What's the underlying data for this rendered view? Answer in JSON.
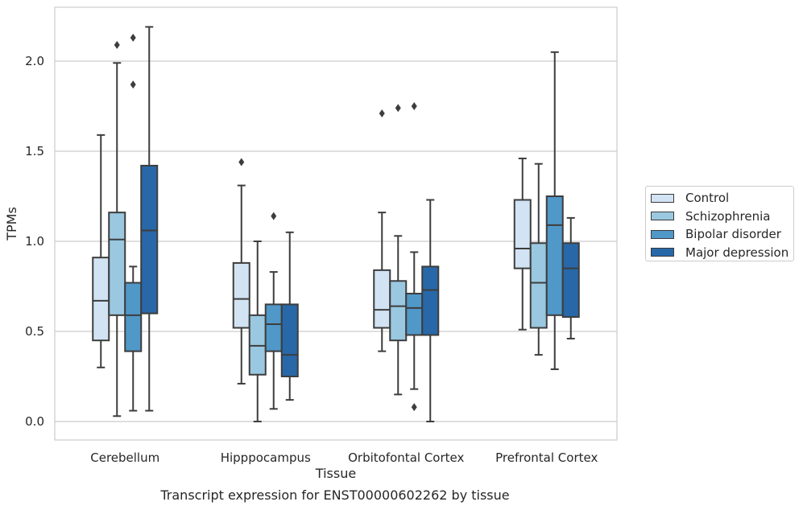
{
  "chart_data": {
    "type": "box",
    "xlabel": "Tissue",
    "ylabel": "TPMs",
    "caption": "Transcript expression for ENST00000602262 by tissue",
    "categories": [
      "Cerebellum",
      "Hipppocampus",
      "Orbitofontal Cortex",
      "Prefrontal Cortex"
    ],
    "ylim": [
      -0.1,
      2.3
    ],
    "yticks": [
      "0.0",
      "0.5",
      "1.0",
      "1.5",
      "2.0"
    ],
    "grid": "horizontal",
    "legend_position": "right",
    "series": [
      {
        "name": "Control",
        "color": "#d2e3f3",
        "boxes": [
          {
            "whisker_low": 0.3,
            "q1": 0.45,
            "median": 0.67,
            "q3": 0.91,
            "whisker_high": 1.59,
            "outliers": []
          },
          {
            "whisker_low": 0.21,
            "q1": 0.52,
            "median": 0.68,
            "q3": 0.88,
            "whisker_high": 1.31,
            "outliers": [
              1.44
            ]
          },
          {
            "whisker_low": 0.39,
            "q1": 0.52,
            "median": 0.62,
            "q3": 0.84,
            "whisker_high": 1.16,
            "outliers": [
              1.71
            ]
          },
          {
            "whisker_low": 0.51,
            "q1": 0.85,
            "median": 0.96,
            "q3": 1.23,
            "whisker_high": 1.46,
            "outliers": []
          }
        ]
      },
      {
        "name": "Schizophrenia",
        "color": "#9ac8e0",
        "boxes": [
          {
            "whisker_low": 0.03,
            "q1": 0.59,
            "median": 1.01,
            "q3": 1.16,
            "whisker_high": 1.99,
            "outliers": [
              2.09
            ]
          },
          {
            "whisker_low": 0.0,
            "q1": 0.26,
            "median": 0.42,
            "q3": 0.59,
            "whisker_high": 1.0,
            "outliers": []
          },
          {
            "whisker_low": 0.15,
            "q1": 0.45,
            "median": 0.64,
            "q3": 0.78,
            "whisker_high": 1.03,
            "outliers": [
              1.74
            ]
          },
          {
            "whisker_low": 0.37,
            "q1": 0.52,
            "median": 0.77,
            "q3": 0.99,
            "whisker_high": 1.43,
            "outliers": []
          }
        ]
      },
      {
        "name": "Bipolar disorder",
        "color": "#5098c8",
        "boxes": [
          {
            "whisker_low": 0.06,
            "q1": 0.39,
            "median": 0.59,
            "q3": 0.77,
            "whisker_high": 0.86,
            "outliers": [
              1.87,
              2.13
            ]
          },
          {
            "whisker_low": 0.07,
            "q1": 0.39,
            "median": 0.54,
            "q3": 0.65,
            "whisker_high": 0.83,
            "outliers": [
              1.14
            ]
          },
          {
            "whisker_low": 0.18,
            "q1": 0.48,
            "median": 0.63,
            "q3": 0.71,
            "whisker_high": 0.94,
            "outliers": [
              0.08,
              1.75
            ]
          },
          {
            "whisker_low": 0.29,
            "q1": 0.59,
            "median": 1.09,
            "q3": 1.25,
            "whisker_high": 2.05,
            "outliers": []
          }
        ]
      },
      {
        "name": "Major depression",
        "color": "#2868a8",
        "boxes": [
          {
            "whisker_low": 0.06,
            "q1": 0.6,
            "median": 1.06,
            "q3": 1.42,
            "whisker_high": 2.19,
            "outliers": []
          },
          {
            "whisker_low": 0.12,
            "q1": 0.25,
            "median": 0.37,
            "q3": 0.65,
            "whisker_high": 1.05,
            "outliers": []
          },
          {
            "whisker_low": 0.0,
            "q1": 0.48,
            "median": 0.73,
            "q3": 0.86,
            "whisker_high": 1.23,
            "outliers": []
          },
          {
            "whisker_low": 0.46,
            "q1": 0.58,
            "median": 0.85,
            "q3": 0.99,
            "whisker_high": 1.13,
            "outliers": []
          }
        ]
      }
    ]
  }
}
